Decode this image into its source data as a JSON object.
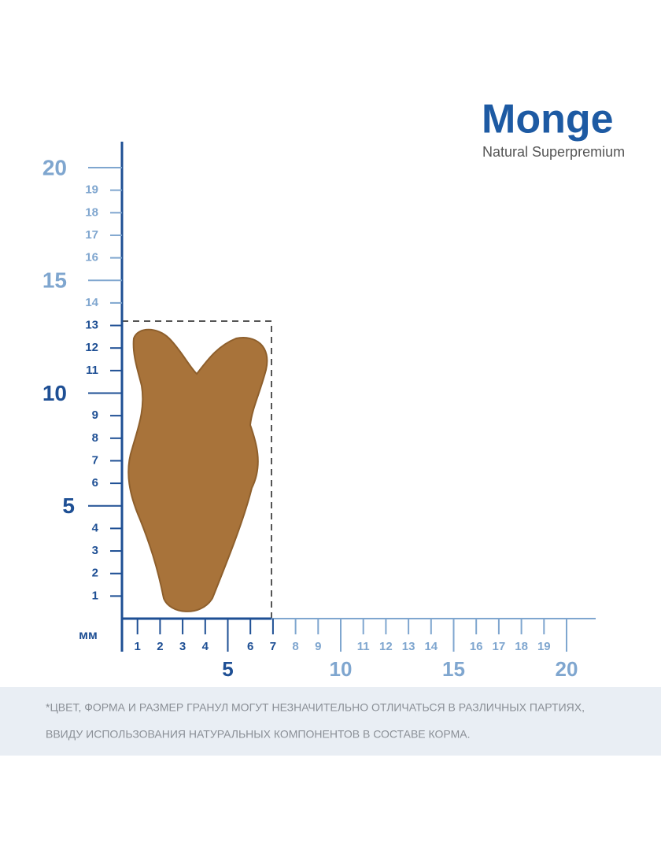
{
  "logo": {
    "brand": "Monge",
    "tagline": "Natural Superpremium"
  },
  "ruler": {
    "unit": "мм",
    "y": {
      "minor_dark": [
        1,
        2,
        3,
        4,
        6,
        7,
        8,
        9,
        11,
        12,
        13
      ],
      "minor_light": [
        14,
        16,
        17,
        18,
        19
      ],
      "major_dark": [
        5,
        10
      ],
      "major_light": [
        15,
        20
      ]
    },
    "x": {
      "minor_dark": [
        1,
        2,
        3,
        4,
        6,
        7
      ],
      "minor_light": [
        8,
        9,
        11,
        12,
        13,
        14,
        16,
        17,
        18,
        19
      ],
      "major_dark": [
        5
      ],
      "major_light": [
        10,
        15,
        20
      ]
    }
  },
  "disclaimer": [
    "*ЦВЕТ, ФОРМА И РАЗМЕР ГРАНУЛ МОГУТ НЕЗНАЧИТЕЛЬНО ОТЛИЧАТЬСЯ В РАЗЛИЧНЫХ ПАРТИЯХ,",
    "ВВИДУ ИСПОЛЬЗОВАНИЯ НАТУРАЛЬНЫХ КОМПОНЕНТОВ В СОСТАВЕ КОРМА."
  ]
}
